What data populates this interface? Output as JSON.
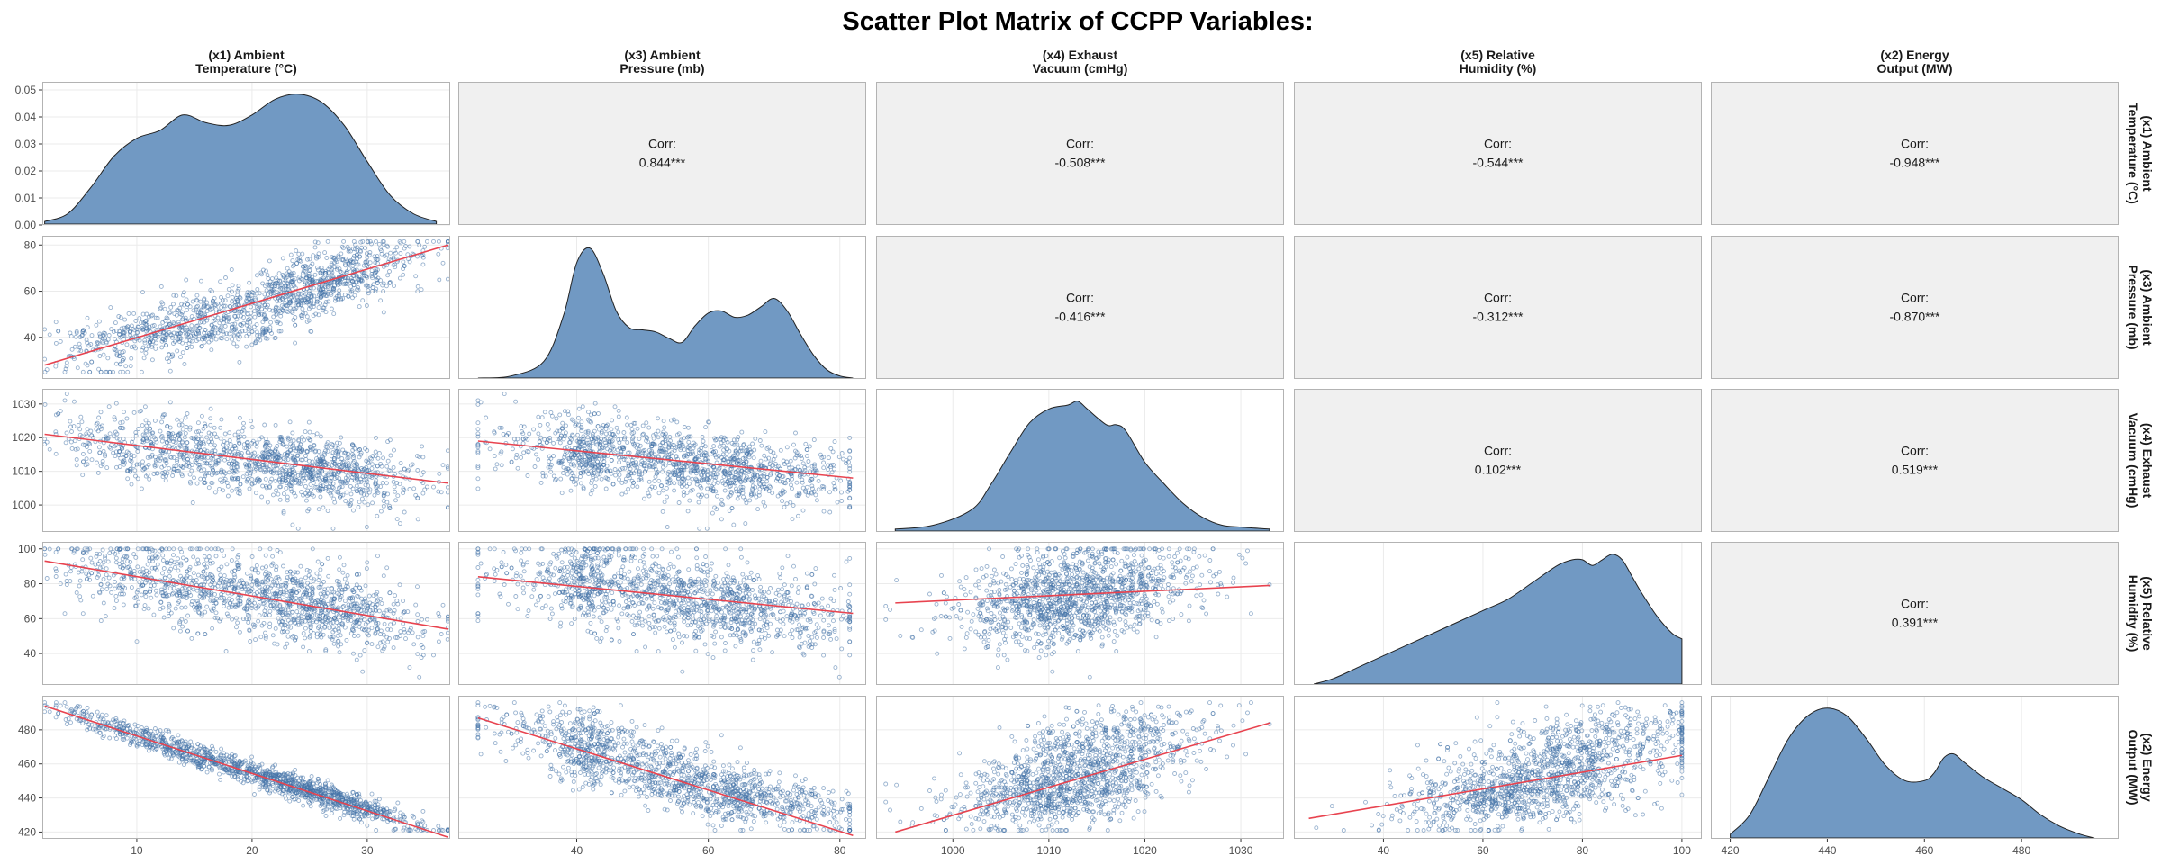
{
  "chart_data": {
    "type": "scatter-matrix",
    "title": "Scatter Plot Matrix of CCPP Variables:",
    "variables": [
      {
        "id": "x1",
        "label_lines": [
          "(x1) Ambient",
          "Temperature (°C)"
        ],
        "range": [
          1.8,
          37.2
        ],
        "ticks": [
          10,
          20,
          30
        ],
        "y_ticks": [
          0.0,
          0.01,
          0.02,
          0.03,
          0.04,
          0.05
        ],
        "y_tick_labels": [
          "0.00",
          "0.01",
          "0.02",
          "0.03",
          "0.04",
          "0.05"
        ],
        "density_ylim": [
          0,
          0.053
        ]
      },
      {
        "id": "x3",
        "label_lines": [
          "(x3) Ambient",
          "Pressure (mb)"
        ],
        "range": [
          22,
          84
        ],
        "ticks": [
          40,
          60,
          80
        ]
      },
      {
        "id": "x4",
        "label_lines": [
          "(x4) Exhaust",
          "Vacuum (cmHg)"
        ],
        "range": [
          992,
          1034.5
        ],
        "ticks": [
          1000,
          1010,
          1020,
          1030
        ]
      },
      {
        "id": "x5",
        "label_lines": [
          "(x5) Relative",
          "Humidity (%)"
        ],
        "range": [
          22,
          104
        ],
        "ticks": [
          40,
          60,
          80,
          100
        ]
      },
      {
        "id": "x2",
        "label_lines": [
          "(x2) Energy",
          "Output (MW)"
        ],
        "range": [
          416,
          500
        ],
        "ticks": [
          420,
          440,
          460,
          480
        ]
      }
    ],
    "correlations": [
      {
        "row": 0,
        "col": 1,
        "label": "Corr:",
        "value": "0.844***"
      },
      {
        "row": 0,
        "col": 2,
        "label": "Corr:",
        "value": "-0.508***"
      },
      {
        "row": 0,
        "col": 3,
        "label": "Corr:",
        "value": "-0.544***"
      },
      {
        "row": 0,
        "col": 4,
        "label": "Corr:",
        "value": "-0.948***"
      },
      {
        "row": 1,
        "col": 2,
        "label": "Corr:",
        "value": "-0.416***"
      },
      {
        "row": 1,
        "col": 3,
        "label": "Corr:",
        "value": "-0.312***"
      },
      {
        "row": 1,
        "col": 4,
        "label": "Corr:",
        "value": "-0.870***"
      },
      {
        "row": 2,
        "col": 3,
        "label": "Corr:",
        "value": "0.102***"
      },
      {
        "row": 2,
        "col": 4,
        "label": "Corr:",
        "value": "0.519***"
      },
      {
        "row": 3,
        "col": 4,
        "label": "Corr:",
        "value": "0.391***"
      }
    ],
    "densities": [
      {
        "var": 0,
        "x": [
          2,
          4,
          6,
          8,
          10,
          12,
          14,
          16,
          18,
          20,
          22,
          24,
          26,
          28,
          30,
          32,
          34,
          36
        ],
        "y": [
          0.001,
          0.004,
          0.014,
          0.026,
          0.033,
          0.036,
          0.042,
          0.039,
          0.038,
          0.042,
          0.048,
          0.05,
          0.047,
          0.038,
          0.024,
          0.011,
          0.004,
          0.001
        ]
      },
      {
        "var": 1,
        "x": [
          25,
          30,
          35,
          38,
          40,
          42,
          44,
          46,
          48,
          50,
          52,
          54,
          56,
          58,
          60,
          62,
          64,
          66,
          68,
          70,
          72,
          74,
          76,
          78,
          80,
          82
        ],
        "y": [
          0.0,
          0.001,
          0.008,
          0.03,
          0.055,
          0.062,
          0.05,
          0.032,
          0.024,
          0.023,
          0.022,
          0.019,
          0.017,
          0.025,
          0.031,
          0.032,
          0.029,
          0.03,
          0.034,
          0.038,
          0.032,
          0.021,
          0.011,
          0.004,
          0.001,
          0.0
        ]
      },
      {
        "var": 2,
        "x": [
          994,
          998,
          1002,
          1004,
          1006,
          1008,
          1010,
          1012,
          1013,
          1014,
          1016,
          1017,
          1018,
          1020,
          1022,
          1024,
          1026,
          1028,
          1030,
          1033
        ],
        "y": [
          0.001,
          0.003,
          0.011,
          0.024,
          0.04,
          0.055,
          0.062,
          0.064,
          0.066,
          0.062,
          0.054,
          0.054,
          0.051,
          0.035,
          0.024,
          0.014,
          0.007,
          0.003,
          0.002,
          0.001
        ]
      },
      {
        "var": 3,
        "x": [
          26,
          30,
          35,
          40,
          45,
          50,
          55,
          60,
          65,
          70,
          75,
          78,
          80,
          82,
          84,
          86,
          88,
          90,
          92,
          95,
          98,
          100
        ],
        "y": [
          0.0,
          0.001,
          0.003,
          0.005,
          0.007,
          0.009,
          0.011,
          0.013,
          0.015,
          0.018,
          0.021,
          0.022,
          0.022,
          0.021,
          0.022,
          0.023,
          0.022,
          0.019,
          0.016,
          0.012,
          0.009,
          0.008
        ]
      },
      {
        "var": 4,
        "x": [
          420,
          424,
          428,
          432,
          436,
          440,
          444,
          448,
          452,
          456,
          460,
          462,
          464,
          466,
          468,
          472,
          476,
          480,
          484,
          488,
          492,
          495
        ],
        "y": [
          0.001,
          0.006,
          0.016,
          0.026,
          0.032,
          0.034,
          0.032,
          0.026,
          0.019,
          0.015,
          0.015,
          0.017,
          0.021,
          0.022,
          0.02,
          0.016,
          0.013,
          0.01,
          0.006,
          0.003,
          0.001,
          0.0
        ]
      }
    ],
    "regression_lines": [
      {
        "row": 1,
        "col": 0,
        "x": [
          2,
          37
        ],
        "y": [
          28,
          80
        ]
      },
      {
        "row": 2,
        "col": 0,
        "x": [
          2,
          37
        ],
        "y": [
          1021,
          1006.5
        ]
      },
      {
        "row": 2,
        "col": 1,
        "x": [
          25,
          82
        ],
        "y": [
          1019,
          1008
        ]
      },
      {
        "row": 3,
        "col": 0,
        "x": [
          2,
          37
        ],
        "y": [
          93,
          54
        ]
      },
      {
        "row": 3,
        "col": 1,
        "x": [
          25,
          82
        ],
        "y": [
          84,
          63
        ]
      },
      {
        "row": 3,
        "col": 2,
        "x": [
          994,
          1033
        ],
        "y": [
          69,
          79
        ]
      },
      {
        "row": 4,
        "col": 0,
        "x": [
          2,
          37
        ],
        "y": [
          494,
          417
        ]
      },
      {
        "row": 4,
        "col": 1,
        "x": [
          25,
          82
        ],
        "y": [
          487,
          418
        ]
      },
      {
        "row": 4,
        "col": 2,
        "x": [
          994,
          1033
        ],
        "y": [
          420,
          484
        ]
      },
      {
        "row": 4,
        "col": 3,
        "x": [
          25,
          100
        ],
        "y": [
          428,
          465
        ]
      }
    ],
    "colors": {
      "points": "#4472a8",
      "density_fill": "#7199c3",
      "density_line": "#222222",
      "regression": "#e8434f",
      "corr_panel": "#f0f0f0",
      "panel_border": "#b3b3b3",
      "grid": "#ebebeb"
    },
    "grid": true
  }
}
